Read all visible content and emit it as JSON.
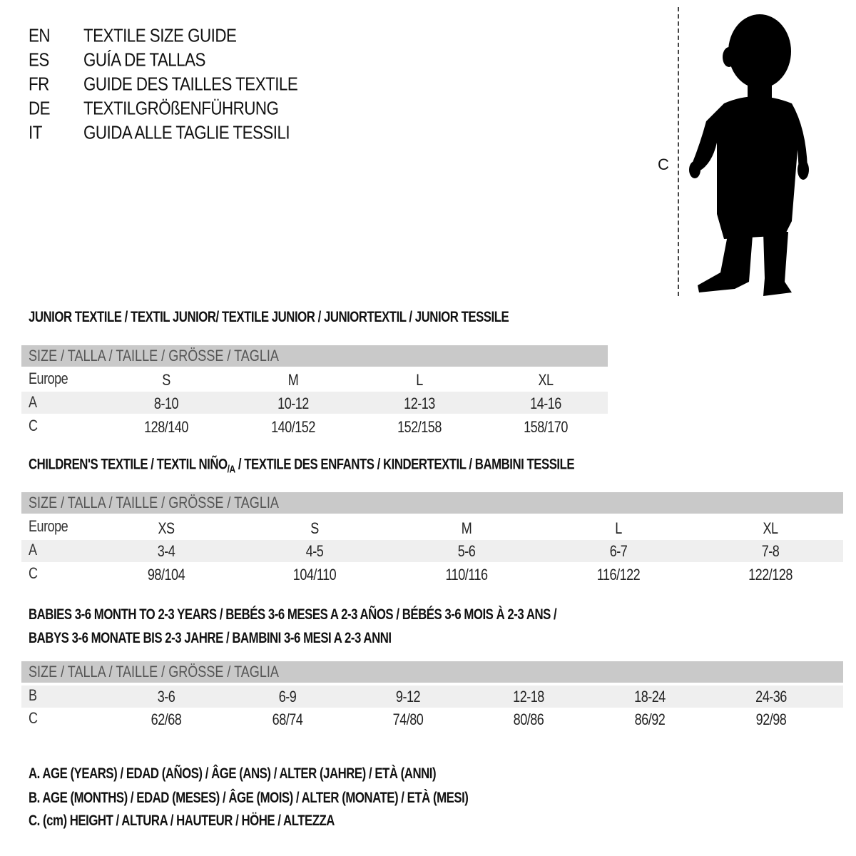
{
  "languages": [
    {
      "code": "EN",
      "title": "TEXTILE SIZE GUIDE"
    },
    {
      "code": "ES",
      "title": "GUÍA DE TALLAS"
    },
    {
      "code": "FR",
      "title": "GUIDE DES TAILLES TEXTILE"
    },
    {
      "code": "DE",
      "title": "TEXTILGRÖßENFÜHRUNG"
    },
    {
      "code": "IT",
      "title": "GUIDA ALLE TAGLIE TESSILI"
    }
  ],
  "figure": {
    "label": "C",
    "icon": "child-silhouette"
  },
  "colors": {
    "header_bar": "#c9c9c9",
    "alt_row": "#efefef"
  },
  "junior": {
    "title": "JUNIOR TEXTILE / TEXTIL JUNIOR/ TEXTILE JUNIOR / JUNIORTEXTIL / JUNIOR TESSILE",
    "header": "SIZE / TALLA / TAILLE / GRÖSSE / TAGLIA",
    "rows": [
      {
        "label": "Europe",
        "values": [
          "S",
          "M",
          "L",
          "XL"
        ]
      },
      {
        "label": "A",
        "values": [
          "8-10",
          "10-12",
          "12-13",
          "14-16"
        ]
      },
      {
        "label": "C",
        "values": [
          "128/140",
          "140/152",
          "152/158",
          "158/170"
        ]
      }
    ]
  },
  "children": {
    "title_main": "CHILDREN'S TEXTILE / TEXTIL NIÑO",
    "title_sub": "/A",
    "title_rest": " / TEXTILE DES ENFANTS / KINDERTEXTIL / BAMBINI TESSILE",
    "header": "SIZE / TALLA / TAILLE / GRÖSSE / TAGLIA",
    "rows": [
      {
        "label": "Europe",
        "values": [
          "XS",
          "S",
          "M",
          "L",
          "XL"
        ]
      },
      {
        "label": "A",
        "values": [
          "3-4",
          "4-5",
          "5-6",
          "6-7",
          "7-8"
        ]
      },
      {
        "label": "C",
        "values": [
          "98/104",
          "104/110",
          "110/116",
          "116/122",
          "122/128"
        ]
      }
    ]
  },
  "babies": {
    "title_line1": "BABIES 3-6 MONTH TO 2-3 YEARS / BEBÉS 3-6 MESES A 2-3 AÑOS / BÉBÉS 3-6 MOIS À 2-3 ANS /",
    "title_line2": "BABYS 3-6 MONATE BIS 2-3 JAHRE / BAMBINI 3-6 MESI A 2-3 ANNI",
    "header": "SIZE / TALLA / TAILLE / GRÖSSE / TAGLIA",
    "rows": [
      {
        "label": "B",
        "values": [
          "3-6",
          "6-9",
          "9-12",
          "12-18",
          "18-24",
          "24-36"
        ]
      },
      {
        "label": "C",
        "values": [
          "62/68",
          "68/74",
          "74/80",
          "80/86",
          "86/92",
          "92/98"
        ]
      }
    ]
  },
  "legend": [
    "A. AGE (YEARS) / EDAD (AÑOS) / ÂGE (ANS) / ALTER (JAHRE) / ETÀ (ANNI)",
    "B. AGE (MONTHS) / EDAD (MESES) / ÂGE (MOIS) / ALTER (MONATE) / ETÀ (MESI)",
    "C. (cm) HEIGHT / ALTURA / HAUTEUR / HÖHE / ALTEZZA"
  ]
}
